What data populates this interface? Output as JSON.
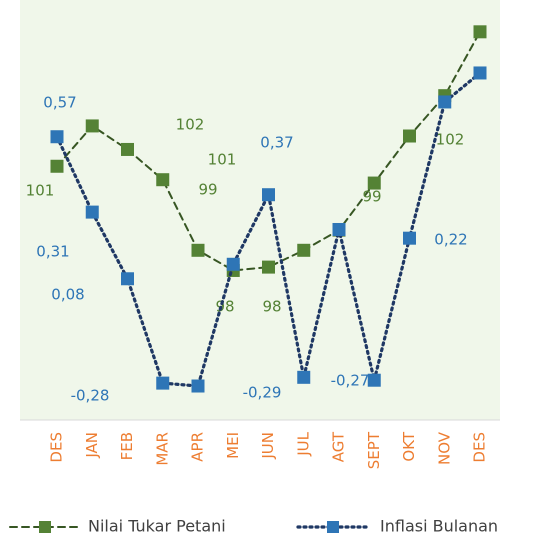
{
  "chart_data": {
    "type": "line",
    "categories": [
      "DES",
      "JAN",
      "FEB",
      "MAR",
      "APR",
      "MEI",
      "JUN",
      "JUL",
      "AGT",
      "SEPT",
      "OKT",
      "NOV",
      "DES"
    ],
    "series": [
      {
        "name": "Nilai Tukar Petani",
        "color": "#548235",
        "axis": "y2",
        "values": [
          101.1,
          102.3,
          101.6,
          100.7,
          98.6,
          98.0,
          98.1,
          98.6,
          99.2,
          100.6,
          102.0,
          103.2,
          105.1
        ],
        "value_labels": [
          "101",
          null,
          "102",
          "101",
          "99",
          "98",
          "98",
          "99",
          null,
          null,
          "102",
          null,
          null
        ]
      },
      {
        "name": "Inflasi Bulanan",
        "color": "#2e75b6",
        "values": [
          0.57,
          0.31,
          0.08,
          -0.28,
          -0.29,
          0.13,
          0.37,
          -0.26,
          0.25,
          -0.27,
          0.22,
          0.69,
          0.79
        ],
        "value_labels": [
          "0,57",
          "0,31",
          "0,08",
          "-0,28",
          "-0,29",
          null,
          "0,37",
          null,
          null,
          "-0,27",
          "0,22",
          null,
          null
        ]
      }
    ],
    "ylim": [
      -0.39,
      0.99
    ],
    "y2lim": [
      93.7,
      105.6
    ]
  }
}
